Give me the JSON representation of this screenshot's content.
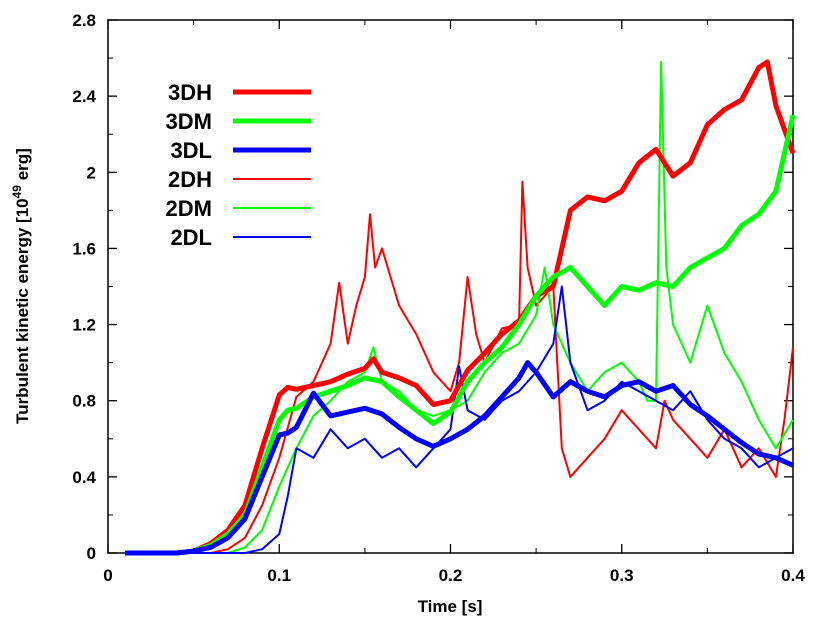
{
  "chart_data": {
    "type": "line",
    "xlabel": "Time [s]",
    "ylabel": "Turbulent kinetic energy [10",
    "ylabel_sup": "49",
    "ylabel_end": " erg]",
    "xlim": [
      0,
      0.4
    ],
    "ylim": [
      0,
      2.8
    ],
    "xticks": [
      "0",
      "0.1",
      "0.2",
      "0.3",
      "0.4"
    ],
    "yticks": [
      "0",
      "0.4",
      "0.8",
      "1.2",
      "1.6",
      "2",
      "2.4",
      "2.8"
    ],
    "grid": false,
    "legend_position": "top-left",
    "series": [
      {
        "name": "3DH",
        "color": "#ff0000",
        "width": 5,
        "x": [
          0.01,
          0.04,
          0.05,
          0.06,
          0.07,
          0.08,
          0.09,
          0.1,
          0.105,
          0.11,
          0.12,
          0.13,
          0.14,
          0.15,
          0.155,
          0.16,
          0.17,
          0.18,
          0.19,
          0.2,
          0.21,
          0.22,
          0.23,
          0.24,
          0.25,
          0.26,
          0.27,
          0.28,
          0.29,
          0.3,
          0.31,
          0.32,
          0.33,
          0.34,
          0.35,
          0.36,
          0.37,
          0.38,
          0.385,
          0.39,
          0.4
        ],
        "y": [
          0,
          0,
          0.01,
          0.05,
          0.12,
          0.25,
          0.55,
          0.83,
          0.87,
          0.86,
          0.88,
          0.9,
          0.94,
          0.97,
          1.02,
          0.95,
          0.92,
          0.88,
          0.78,
          0.8,
          0.96,
          1.05,
          1.15,
          1.22,
          1.35,
          1.4,
          1.8,
          1.87,
          1.85,
          1.9,
          2.05,
          2.12,
          1.98,
          2.05,
          2.25,
          2.33,
          2.38,
          2.55,
          2.58,
          2.35,
          2.1
        ]
      },
      {
        "name": "3DM",
        "color": "#00ff00",
        "width": 5,
        "x": [
          0.01,
          0.04,
          0.05,
          0.06,
          0.07,
          0.08,
          0.09,
          0.1,
          0.105,
          0.11,
          0.12,
          0.13,
          0.14,
          0.15,
          0.16,
          0.17,
          0.18,
          0.19,
          0.2,
          0.21,
          0.22,
          0.23,
          0.24,
          0.25,
          0.26,
          0.27,
          0.28,
          0.29,
          0.3,
          0.31,
          0.32,
          0.33,
          0.34,
          0.35,
          0.36,
          0.37,
          0.38,
          0.39,
          0.4
        ],
        "y": [
          0,
          0,
          0.01,
          0.04,
          0.1,
          0.2,
          0.45,
          0.7,
          0.75,
          0.76,
          0.82,
          0.85,
          0.88,
          0.92,
          0.9,
          0.82,
          0.75,
          0.68,
          0.74,
          0.9,
          1.0,
          1.08,
          1.2,
          1.35,
          1.45,
          1.5,
          1.4,
          1.3,
          1.4,
          1.38,
          1.42,
          1.4,
          1.5,
          1.55,
          1.6,
          1.72,
          1.78,
          1.9,
          2.3
        ]
      },
      {
        "name": "3DL",
        "color": "#0000ff",
        "width": 5,
        "x": [
          0.01,
          0.04,
          0.05,
          0.06,
          0.07,
          0.08,
          0.09,
          0.1,
          0.105,
          0.11,
          0.12,
          0.13,
          0.14,
          0.15,
          0.16,
          0.17,
          0.18,
          0.19,
          0.2,
          0.21,
          0.22,
          0.23,
          0.24,
          0.245,
          0.25,
          0.26,
          0.27,
          0.28,
          0.29,
          0.3,
          0.31,
          0.32,
          0.33,
          0.34,
          0.35,
          0.36,
          0.37,
          0.38,
          0.39,
          0.4
        ],
        "y": [
          0,
          0,
          0.01,
          0.03,
          0.08,
          0.18,
          0.4,
          0.62,
          0.63,
          0.66,
          0.84,
          0.72,
          0.74,
          0.76,
          0.73,
          0.66,
          0.6,
          0.56,
          0.6,
          0.65,
          0.72,
          0.82,
          0.92,
          1.0,
          0.95,
          0.82,
          0.9,
          0.85,
          0.82,
          0.88,
          0.9,
          0.85,
          0.88,
          0.78,
          0.72,
          0.65,
          0.58,
          0.52,
          0.5,
          0.46
        ]
      },
      {
        "name": "2DH",
        "color": "#ff0000",
        "width": 2,
        "x": [
          0.01,
          0.06,
          0.07,
          0.08,
          0.09,
          0.1,
          0.11,
          0.12,
          0.13,
          0.135,
          0.14,
          0.145,
          0.15,
          0.153,
          0.156,
          0.16,
          0.17,
          0.18,
          0.19,
          0.2,
          0.205,
          0.21,
          0.215,
          0.22,
          0.23,
          0.24,
          0.242,
          0.245,
          0.25,
          0.26,
          0.265,
          0.27,
          0.28,
          0.29,
          0.3,
          0.31,
          0.32,
          0.325,
          0.33,
          0.34,
          0.35,
          0.36,
          0.37,
          0.38,
          0.39,
          0.395,
          0.4
        ],
        "y": [
          0,
          0,
          0.02,
          0.08,
          0.25,
          0.5,
          0.82,
          0.9,
          1.1,
          1.42,
          1.1,
          1.3,
          1.45,
          1.78,
          1.5,
          1.6,
          1.3,
          1.15,
          0.95,
          0.85,
          1.0,
          1.45,
          1.15,
          1.0,
          1.18,
          1.2,
          1.95,
          1.5,
          1.3,
          1.4,
          0.55,
          0.4,
          0.5,
          0.6,
          0.75,
          0.65,
          0.55,
          0.8,
          0.7,
          0.6,
          0.5,
          0.65,
          0.45,
          0.55,
          0.4,
          0.7,
          1.08
        ]
      },
      {
        "name": "2DM",
        "color": "#00ff00",
        "width": 2,
        "x": [
          0.01,
          0.07,
          0.08,
          0.09,
          0.1,
          0.11,
          0.12,
          0.13,
          0.14,
          0.15,
          0.155,
          0.16,
          0.17,
          0.18,
          0.19,
          0.2,
          0.21,
          0.22,
          0.23,
          0.24,
          0.25,
          0.255,
          0.26,
          0.27,
          0.28,
          0.29,
          0.3,
          0.31,
          0.315,
          0.32,
          0.323,
          0.326,
          0.33,
          0.34,
          0.35,
          0.36,
          0.37,
          0.38,
          0.39,
          0.4
        ],
        "y": [
          0,
          0,
          0.03,
          0.12,
          0.35,
          0.55,
          0.72,
          0.8,
          0.9,
          0.95,
          1.08,
          0.9,
          0.85,
          0.75,
          0.72,
          0.75,
          0.8,
          0.95,
          1.05,
          1.1,
          1.25,
          1.5,
          1.2,
          1.0,
          0.85,
          0.95,
          1.0,
          0.9,
          0.8,
          0.8,
          2.58,
          1.5,
          1.2,
          1.0,
          1.3,
          1.05,
          0.9,
          0.7,
          0.55,
          0.7
        ]
      },
      {
        "name": "2DL",
        "color": "#0000ff",
        "width": 2,
        "x": [
          0.01,
          0.08,
          0.09,
          0.1,
          0.105,
          0.11,
          0.12,
          0.13,
          0.14,
          0.15,
          0.16,
          0.17,
          0.18,
          0.19,
          0.2,
          0.205,
          0.21,
          0.22,
          0.23,
          0.24,
          0.25,
          0.26,
          0.265,
          0.27,
          0.28,
          0.29,
          0.3,
          0.31,
          0.32,
          0.33,
          0.34,
          0.35,
          0.36,
          0.37,
          0.38,
          0.39,
          0.4
        ],
        "y": [
          0,
          0,
          0.02,
          0.1,
          0.3,
          0.55,
          0.5,
          0.65,
          0.55,
          0.6,
          0.5,
          0.55,
          0.45,
          0.55,
          0.65,
          0.98,
          0.75,
          0.7,
          0.8,
          0.85,
          0.95,
          1.1,
          1.4,
          1.0,
          0.75,
          0.8,
          0.9,
          0.85,
          0.8,
          0.75,
          0.85,
          0.7,
          0.6,
          0.55,
          0.45,
          0.5,
          0.55
        ]
      }
    ]
  }
}
